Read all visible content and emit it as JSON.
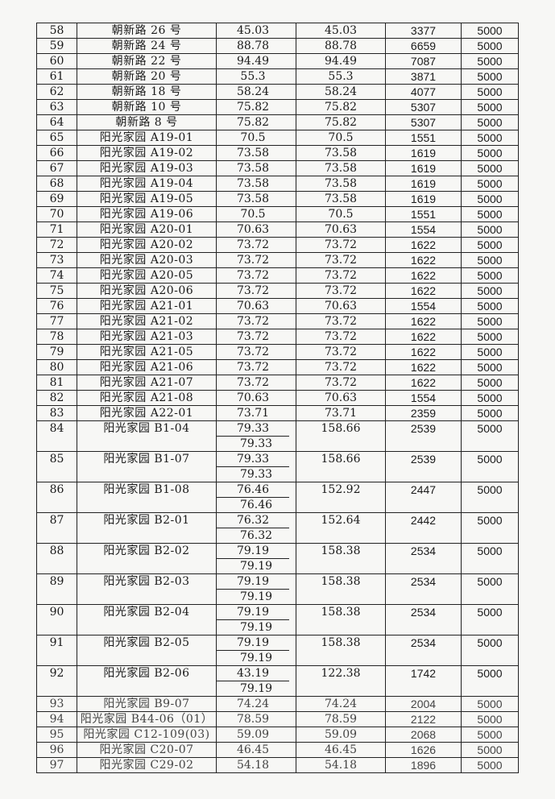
{
  "table": {
    "rows": [
      {
        "no": "58",
        "name": "朝新路 26 号",
        "area": [
          "45.03"
        ],
        "total": "45.03",
        "price": "3377",
        "amount": "5000"
      },
      {
        "no": "59",
        "name": "朝新路 24 号",
        "area": [
          "88.78"
        ],
        "total": "88.78",
        "price": "6659",
        "amount": "5000"
      },
      {
        "no": "60",
        "name": "朝新路 22 号",
        "area": [
          "94.49"
        ],
        "total": "94.49",
        "price": "7087",
        "amount": "5000"
      },
      {
        "no": "61",
        "name": "朝新路 20 号",
        "area": [
          "55.3"
        ],
        "total": "55.3",
        "price": "3871",
        "amount": "5000"
      },
      {
        "no": "62",
        "name": "朝新路 18 号",
        "area": [
          "58.24"
        ],
        "total": "58.24",
        "price": "4077",
        "amount": "5000"
      },
      {
        "no": "63",
        "name": "朝新路 10 号",
        "area": [
          "75.82"
        ],
        "total": "75.82",
        "price": "5307",
        "amount": "5000"
      },
      {
        "no": "64",
        "name": "朝新路 8 号",
        "area": [
          "75.82"
        ],
        "total": "75.82",
        "price": "5307",
        "amount": "5000"
      },
      {
        "no": "65",
        "name": "阳光家园 A19-01",
        "area": [
          "70.5"
        ],
        "total": "70.5",
        "price": "1551",
        "amount": "5000"
      },
      {
        "no": "66",
        "name": "阳光家园 A19-02",
        "area": [
          "73.58"
        ],
        "total": "73.58",
        "price": "1619",
        "amount": "5000"
      },
      {
        "no": "67",
        "name": "阳光家园 A19-03",
        "area": [
          "73.58"
        ],
        "total": "73.58",
        "price": "1619",
        "amount": "5000"
      },
      {
        "no": "68",
        "name": "阳光家园 A19-04",
        "area": [
          "73.58"
        ],
        "total": "73.58",
        "price": "1619",
        "amount": "5000"
      },
      {
        "no": "69",
        "name": "阳光家园 A19-05",
        "area": [
          "73.58"
        ],
        "total": "73.58",
        "price": "1619",
        "amount": "5000"
      },
      {
        "no": "70",
        "name": "阳光家园 A19-06",
        "area": [
          "70.5"
        ],
        "total": "70.5",
        "price": "1551",
        "amount": "5000"
      },
      {
        "no": "71",
        "name": "阳光家园 A20-01",
        "area": [
          "70.63"
        ],
        "total": "70.63",
        "price": "1554",
        "amount": "5000"
      },
      {
        "no": "72",
        "name": "阳光家园 A20-02",
        "area": [
          "73.72"
        ],
        "total": "73.72",
        "price": "1622",
        "amount": "5000"
      },
      {
        "no": "73",
        "name": "阳光家园 A20-03",
        "area": [
          "73.72"
        ],
        "total": "73.72",
        "price": "1622",
        "amount": "5000"
      },
      {
        "no": "74",
        "name": "阳光家园 A20-05",
        "area": [
          "73.72"
        ],
        "total": "73.72",
        "price": "1622",
        "amount": "5000"
      },
      {
        "no": "75",
        "name": "阳光家园 A20-06",
        "area": [
          "73.72"
        ],
        "total": "73.72",
        "price": "1622",
        "amount": "5000"
      },
      {
        "no": "76",
        "name": "阳光家园 A21-01",
        "area": [
          "70.63"
        ],
        "total": "70.63",
        "price": "1554",
        "amount": "5000"
      },
      {
        "no": "77",
        "name": "阳光家园 A21-02",
        "area": [
          "73.72"
        ],
        "total": "73.72",
        "price": "1622",
        "amount": "5000"
      },
      {
        "no": "78",
        "name": "阳光家园 A21-03",
        "area": [
          "73.72"
        ],
        "total": "73.72",
        "price": "1622",
        "amount": "5000"
      },
      {
        "no": "79",
        "name": "阳光家园 A21-05",
        "area": [
          "73.72"
        ],
        "total": "73.72",
        "price": "1622",
        "amount": "5000"
      },
      {
        "no": "80",
        "name": "阳光家园 A21-06",
        "area": [
          "73.72"
        ],
        "total": "73.72",
        "price": "1622",
        "amount": "5000"
      },
      {
        "no": "81",
        "name": "阳光家园 A21-07",
        "area": [
          "73.72"
        ],
        "total": "73.72",
        "price": "1622",
        "amount": "5000"
      },
      {
        "no": "82",
        "name": "阳光家园 A21-08",
        "area": [
          "70.63"
        ],
        "total": "70.63",
        "price": "1554",
        "amount": "5000"
      },
      {
        "no": "83",
        "name": "阳光家园 A22-01",
        "area": [
          "73.71"
        ],
        "total": "73.71",
        "price": "2359",
        "amount": "5000"
      },
      {
        "no": "84",
        "name": "阳光家园 B1-04",
        "area": [
          "79.33",
          "79.33"
        ],
        "total": "158.66",
        "price": "2539",
        "amount": "5000"
      },
      {
        "no": "85",
        "name": "阳光家园 B1-07",
        "area": [
          "79.33",
          "79.33"
        ],
        "total": "158.66",
        "price": "2539",
        "amount": "5000"
      },
      {
        "no": "86",
        "name": "阳光家园 B1-08",
        "area": [
          "76.46",
          "76.46"
        ],
        "total": "152.92",
        "price": "2447",
        "amount": "5000"
      },
      {
        "no": "87",
        "name": "阳光家园 B2-01",
        "area": [
          "76.32",
          "76.32"
        ],
        "total": "152.64",
        "price": "2442",
        "amount": "5000"
      },
      {
        "no": "88",
        "name": "阳光家园 B2-02",
        "area": [
          "79.19",
          "79.19"
        ],
        "total": "158.38",
        "price": "2534",
        "amount": "5000"
      },
      {
        "no": "89",
        "name": "阳光家园 B2-03",
        "area": [
          "79.19",
          "79.19"
        ],
        "total": "158.38",
        "price": "2534",
        "amount": "5000"
      },
      {
        "no": "90",
        "name": "阳光家园 B2-04",
        "area": [
          "79.19",
          "79.19"
        ],
        "total": "158.38",
        "price": "2534",
        "amount": "5000"
      },
      {
        "no": "91",
        "name": "阳光家园 B2-05",
        "area": [
          "79.19",
          "79.19"
        ],
        "total": "158.38",
        "price": "2534",
        "amount": "5000"
      },
      {
        "no": "92",
        "name": "阳光家园 B2-06",
        "area": [
          "43.19",
          "79.19"
        ],
        "total": "122.38",
        "price": "1742",
        "amount": "5000"
      },
      {
        "no": "93",
        "name": "阳光家园 B9-07",
        "area": [
          "74.24"
        ],
        "total": "74.24",
        "price": "2004",
        "amount": "5000"
      },
      {
        "no": "94",
        "name": "阳光家园 B44-06（01）",
        "area": [
          "78.59"
        ],
        "total": "78.59",
        "price": "2122",
        "amount": "5000"
      },
      {
        "no": "95",
        "name": "阳光家园 C12-109(03)",
        "area": [
          "59.09"
        ],
        "total": "59.09",
        "price": "2068",
        "amount": "5000"
      },
      {
        "no": "96",
        "name": "阳光家园 C20-07",
        "area": [
          "46.45"
        ],
        "total": "46.45",
        "price": "1626",
        "amount": "5000"
      },
      {
        "no": "97",
        "name": "阳光家园 C29-02",
        "area": [
          "54.18"
        ],
        "total": "54.18",
        "price": "1896",
        "amount": "5000"
      }
    ]
  }
}
